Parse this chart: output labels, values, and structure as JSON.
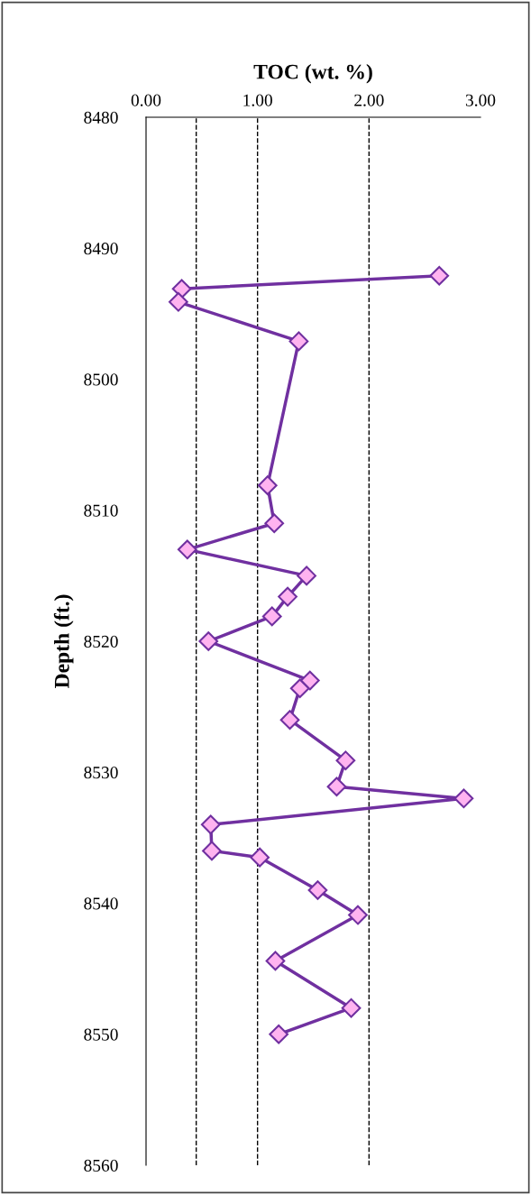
{
  "chart_data": {
    "type": "line",
    "xlabel": "TOC (wt. %)",
    "ylabel": "Depth (ft.)",
    "xlim": [
      0,
      3
    ],
    "xticks": [
      {
        "value": 0,
        "label": "0.00"
      },
      {
        "value": 1,
        "label": "1.00"
      },
      {
        "value": 2,
        "label": "2.00"
      },
      {
        "value": 3,
        "label": "3.00"
      }
    ],
    "ylim": [
      8560,
      8480
    ],
    "yticks": [
      8480,
      8490,
      8500,
      8510,
      8520,
      8530,
      8540,
      8550,
      8560
    ],
    "grid": false,
    "marker": "diamond",
    "line_style": "solid",
    "ref_lines": [
      {
        "axis": "x",
        "value": 0.45,
        "label": null,
        "line_style": "dashed",
        "color": "#000000"
      },
      {
        "axis": "x",
        "value": 1,
        "label": null,
        "line_style": "dashed",
        "color": "#000000"
      },
      {
        "axis": "x",
        "value": 2,
        "label": null,
        "line_style": "dashed",
        "color": "#000000"
      }
    ],
    "series": [
      {
        "color": "#7030a0",
        "x": [
          2.63,
          0.32,
          0.29,
          1.37,
          1.09,
          1.15,
          0.37,
          1.44,
          1.27,
          1.13,
          0.56,
          1.47,
          1.38,
          1.29,
          1.79,
          1.71,
          2.85,
          0.58,
          0.59,
          1.02,
          1.54,
          1.9,
          1.16,
          1.84,
          1.19
        ],
        "values": [
          8492.1,
          8493.1,
          8494.1,
          8497.1,
          8508.1,
          8511.0,
          8513.0,
          8515.0,
          8516.6,
          8518.1,
          8520.0,
          8523.0,
          8523.6,
          8526.0,
          8529.1,
          8531.1,
          8532.0,
          8534.0,
          8536.0,
          8536.5,
          8539.0,
          8540.9,
          8544.4,
          8548.0,
          8550.0
        ]
      }
    ]
  }
}
